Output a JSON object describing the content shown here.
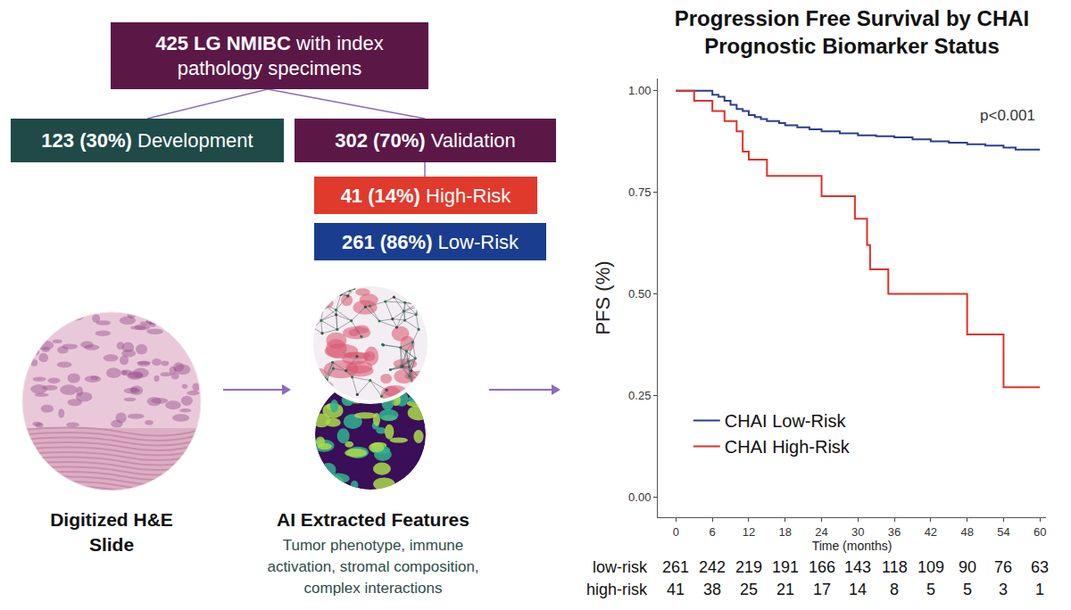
{
  "chart_data": {
    "type": "line",
    "title": "Progression Free Survival by CHAI Prognostic Biomarker Status",
    "x_label": "Time (months)",
    "y_label": "PFS (%)",
    "xlim": [
      -3,
      61
    ],
    "xticks": [
      0,
      6,
      12,
      18,
      24,
      30,
      36,
      42,
      48,
      54,
      60
    ],
    "ylim": [
      -0.05,
      1.03
    ],
    "yticks": [
      {
        "value": 0,
        "label": "0.00"
      },
      {
        "value": 0.25,
        "label": "0.25"
      },
      {
        "value": 0.5,
        "label": "0.50"
      },
      {
        "value": 0.75,
        "label": "0.75"
      },
      {
        "value": 1,
        "label": "1.00"
      }
    ],
    "grid": false,
    "legend": "lower left",
    "line_style": "step",
    "annotation": "p<0.001",
    "series": [
      {
        "name": "CHAI Low-Risk",
        "color": "#2b3f8f",
        "x": [
          0,
          6,
          7,
          8,
          9,
          10,
          11,
          12,
          13,
          14,
          15,
          17,
          18,
          20,
          22,
          24,
          27,
          30,
          33,
          36,
          39,
          42,
          45,
          48,
          51,
          54,
          56,
          60
        ],
        "values": [
          1,
          0.99,
          0.985,
          0.975,
          0.965,
          0.955,
          0.95,
          0.94,
          0.935,
          0.93,
          0.925,
          0.92,
          0.915,
          0.91,
          0.905,
          0.9,
          0.895,
          0.89,
          0.888,
          0.885,
          0.88,
          0.875,
          0.872,
          0.868,
          0.865,
          0.86,
          0.855,
          0.855
        ]
      },
      {
        "name": "CHAI High-Risk",
        "color": "#e03228",
        "x": [
          0,
          3,
          6,
          8,
          10,
          11,
          12,
          15,
          24,
          29.5,
          31.5,
          32,
          35,
          48,
          54,
          60
        ],
        "values": [
          1,
          0.975,
          0.95,
          0.925,
          0.9,
          0.85,
          0.83,
          0.79,
          0.74,
          0.685,
          0.62,
          0.56,
          0.5,
          0.4,
          0.27,
          0.27
        ]
      }
    ],
    "risk_table": {
      "times": [
        0,
        6,
        12,
        18,
        24,
        30,
        36,
        42,
        48,
        54,
        60
      ],
      "rows": [
        {
          "label": "low-risk",
          "counts": [
            261,
            242,
            219,
            191,
            166,
            143,
            118,
            109,
            90,
            76,
            63
          ]
        },
        {
          "label": "high-risk",
          "counts": [
            41,
            38,
            25,
            21,
            17,
            14,
            8,
            5,
            5,
            3,
            1
          ]
        }
      ]
    }
  },
  "diagram": {
    "boxes": {
      "source": {
        "color": "#5b1847",
        "lines": [
          {
            "strong": "425 LG NMIBC",
            "text": "with index"
          },
          {
            "text": "pathology specimens"
          }
        ]
      },
      "development": {
        "color": "#1f4a48",
        "lines": [
          {
            "strong": "123 (30%)",
            "text": "Development"
          }
        ]
      },
      "validation": {
        "color": "#5b1847",
        "lines": [
          {
            "strong": "302 (70%)",
            "text": "Validation"
          }
        ]
      },
      "high_risk": {
        "color": "#e03a2c",
        "lines": [
          {
            "strong": "41 (14%)",
            "text": "High-Risk"
          }
        ]
      },
      "low_risk": {
        "color": "#1a3d8f",
        "lines": [
          {
            "strong": "261 (86%)",
            "text": "Low-Risk"
          }
        ]
      }
    },
    "steps": [
      {
        "label": [
          "Digitized H&E",
          "Slide"
        ]
      },
      {
        "label": [
          "AI Extracted Features"
        ],
        "description": [
          "Tumor phenotype, immune",
          "activation, stromal composition,",
          "complex interactions"
        ]
      }
    ]
  }
}
